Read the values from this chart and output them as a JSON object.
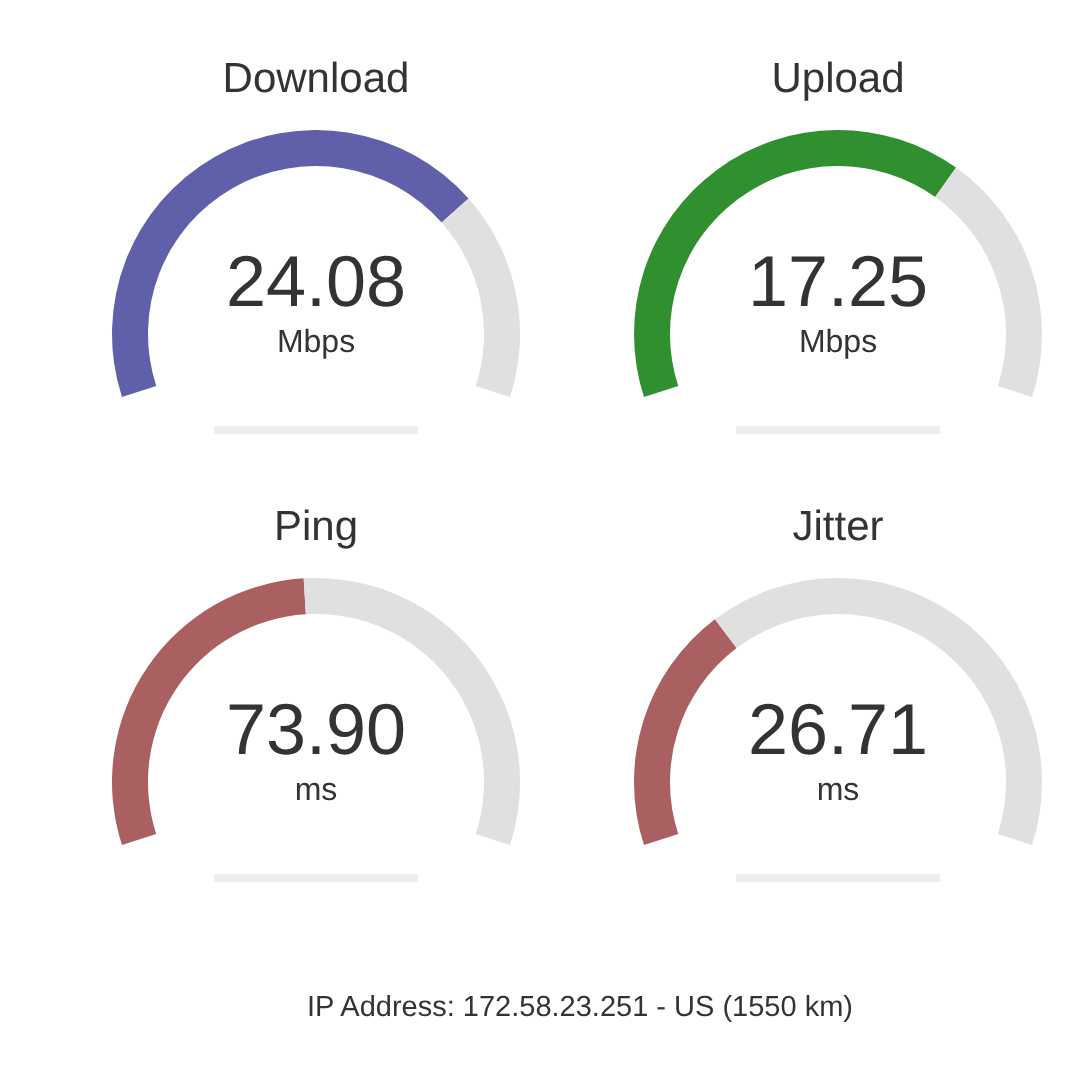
{
  "chart_data": [
    {
      "type": "other",
      "title": "Download",
      "values": [
        24.08
      ],
      "value_labels": [
        "24.08"
      ],
      "ylabel": "Mbps",
      "color": "#6060aa"
    },
    {
      "type": "other",
      "title": "Upload",
      "values": [
        17.25
      ],
      "value_labels": [
        "17.25"
      ],
      "ylabel": "Mbps",
      "color": "#309030"
    },
    {
      "type": "other",
      "title": "Ping",
      "values": [
        73.9
      ],
      "value_labels": [
        "73.90"
      ],
      "ylabel": "ms",
      "color": "#aa6060"
    },
    {
      "type": "other",
      "title": "Jitter",
      "values": [
        26.71
      ],
      "value_labels": [
        "26.71"
      ],
      "ylabel": "ms",
      "color": "#aa6060",
      "annotations": [
        "IP Address: 172.58.23.251 - US (1550 km)"
      ]
    }
  ]
}
